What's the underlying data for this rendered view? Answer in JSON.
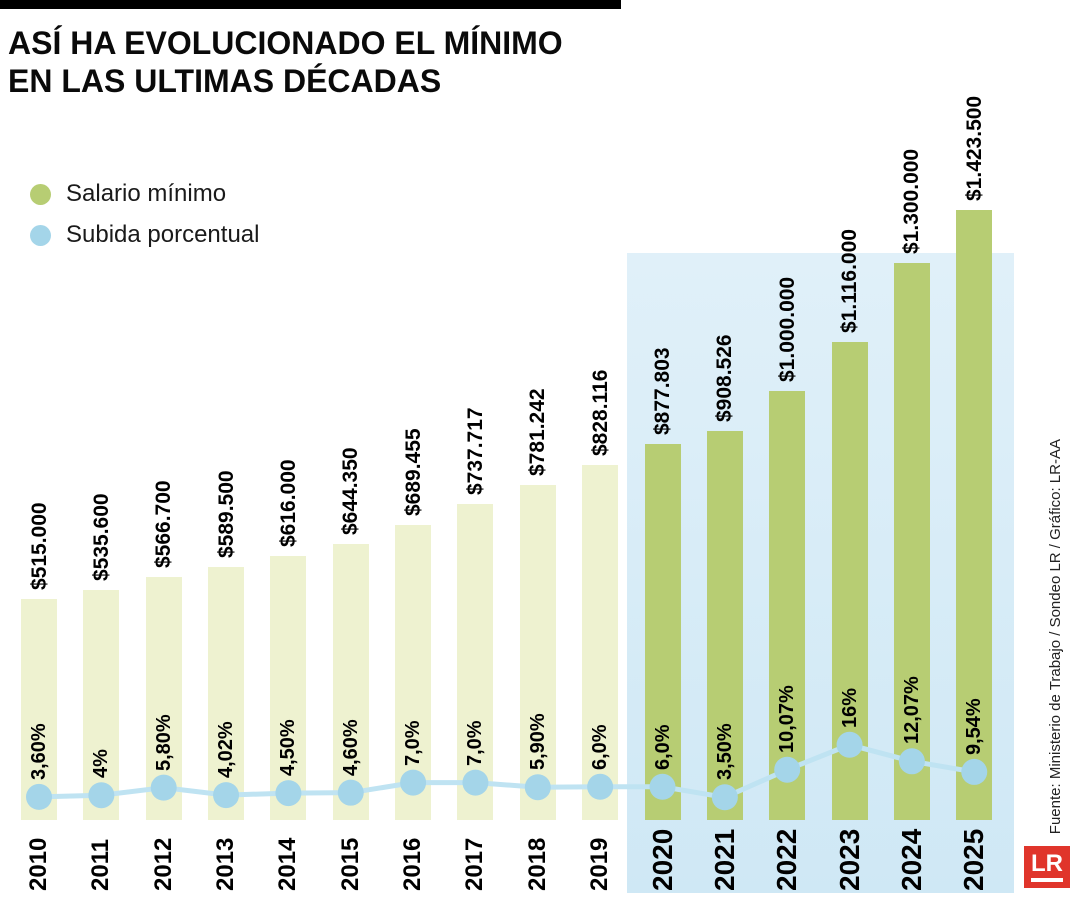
{
  "header": {
    "title_line1": "ASÍ HA EVOLUCIONADO EL MÍNIMO",
    "title_line2": "EN LAS ULTIMAS DÉCADAS"
  },
  "legend": {
    "items": [
      {
        "label": "Salario mínimo"
      },
      {
        "label": "Subida porcentual"
      }
    ]
  },
  "source": {
    "text": "Fuente: Ministerio de Trabajo / Sondeo LR / Gráfico: LR-AA"
  },
  "logo": {
    "text": "LR",
    "color": "#e0352b"
  },
  "chart_data": {
    "type": "bar+line",
    "title": "ASÍ HA EVOLUCIONADO EL MÍNIMO EN LAS ULTIMAS DÉCADAS",
    "categories": [
      "2010",
      "2011",
      "2012",
      "2013",
      "2014",
      "2015",
      "2016",
      "2017",
      "2018",
      "2019",
      "2020",
      "2021",
      "2022",
      "2023",
      "2024",
      "2025"
    ],
    "series": [
      {
        "name": "Salario mínimo",
        "type": "bar",
        "values": [
          515000,
          535600,
          566700,
          589500,
          616000,
          644350,
          689455,
          737717,
          781242,
          828116,
          877803,
          908526,
          1000000,
          1116000,
          1300000,
          1423500
        ],
        "labels": [
          "$515.000",
          "$535.600",
          "$566.700",
          "$589.500",
          "$616.000",
          "$644.350",
          "$689.455",
          "$737.717",
          "$781.242",
          "$828.116",
          "$877.803",
          "$908.526",
          "$1.000.000",
          "$1.116.000",
          "$1.300.000",
          "$1.423.500"
        ]
      },
      {
        "name": "Subida porcentual",
        "type": "line",
        "values": [
          3.6,
          4,
          5.8,
          4.02,
          4.5,
          4.6,
          7.0,
          7.0,
          5.9,
          6.0,
          6.0,
          3.5,
          10.07,
          16,
          12.07,
          9.54
        ],
        "labels": [
          "3,60%",
          "4%",
          "5,80%",
          "4,02%",
          "4,50%",
          "4,60%",
          "7,0%",
          "7,0%",
          "5,90%",
          "6,0%",
          "6,0%",
          "3,50%",
          "10,07%",
          "16%",
          "12,07%",
          "9,54%"
        ]
      }
    ],
    "highlight_from": "2020",
    "legend_position": "top-left",
    "grid": false,
    "colors": {
      "bar_regular": "#eef2d0",
      "bar_highlight": "#b7cd73",
      "dot": "#a4d5e9",
      "line": "#bfe3f2",
      "highlight_bg_top": "#e0f0f9",
      "highlight_bg_bottom": "#cfe8f5",
      "title": "#0a0a0a"
    }
  }
}
